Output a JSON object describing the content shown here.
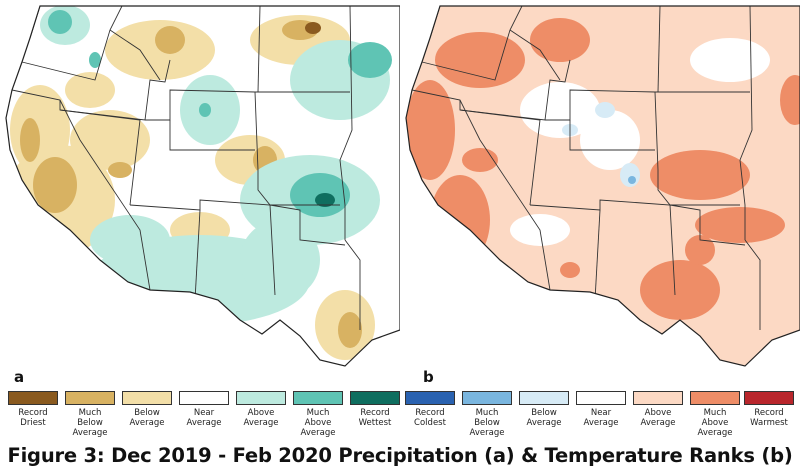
{
  "panels": [
    {
      "letter": "a",
      "variable": "Precipitation"
    },
    {
      "letter": "b",
      "variable": "Temperature"
    }
  ],
  "legend_precip": [
    {
      "label": "Record\nDriest",
      "color": "#8a5a1f"
    },
    {
      "label": "Much\nBelow\nAverage",
      "color": "#d8b262"
    },
    {
      "label": "Below\nAverage",
      "color": "#f3dfa8"
    },
    {
      "label": "Near\nAverage",
      "color": "#ffffff"
    },
    {
      "label": "Above\nAverage",
      "color": "#bdeadf"
    },
    {
      "label": "Much\nAbove\nAverage",
      "color": "#5fc4b4"
    },
    {
      "label": "Record\nWettest",
      "color": "#0f6e5f"
    }
  ],
  "legend_temp": [
    {
      "label": "Record\nColdest",
      "color": "#2a62b0"
    },
    {
      "label": "Much\nBelow\nAverage",
      "color": "#7ab6df"
    },
    {
      "label": "Below\nAverage",
      "color": "#d7ebf6"
    },
    {
      "label": "Near\nAverage",
      "color": "#ffffff"
    },
    {
      "label": "Above\nAverage",
      "color": "#fcd9c4"
    },
    {
      "label": "Much\nAbove\nAverage",
      "color": "#ee8d67"
    },
    {
      "label": "Record\nWarmest",
      "color": "#b9262c"
    }
  ],
  "caption": "Figure 3: Dec 2019 - Feb 2020 Precipitation (a) & Temperature Ranks (b)"
}
